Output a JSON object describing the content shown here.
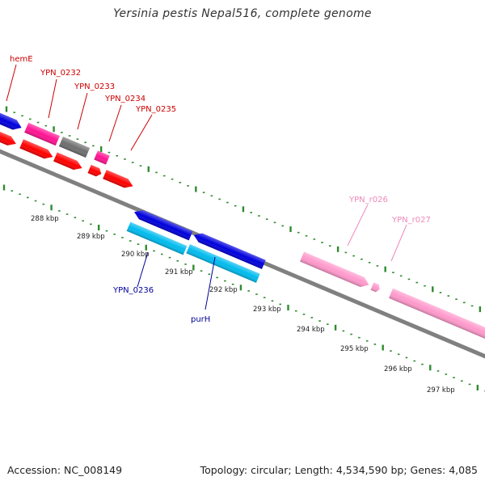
{
  "title": "Yersinia pestis Nepal516, complete genome",
  "footer": {
    "accession": "Accession: NC_008149",
    "summary": "Topology: circular; Length: 4,534,590 bp; Genes: 4,085"
  },
  "colors": {
    "backbone": "#808080",
    "ticks": "#2e8b2e",
    "label_red": "#cc0000",
    "label_blue": "#000099",
    "label_pink": "#ee88bb",
    "cds_red": "#ff0000",
    "cds_blue": "#0000dd",
    "cds_cyan": "#00bbee",
    "cds_magenta": "#ff1493",
    "cds_gray": "#6f6f6f",
    "rna_pink": "#ff99cc"
  },
  "scale_labels": [
    "288 kbp",
    "289 kbp",
    "290 kbp",
    "291 kbp",
    "292 kbp",
    "293 kbp",
    "294 kbp",
    "295 kbp",
    "296 kbp",
    "297 kbp"
  ],
  "features": [
    {
      "name": "hemE",
      "color": "#cc0000"
    },
    {
      "name": "YPN_0232",
      "color": "#cc0000"
    },
    {
      "name": "YPN_0233",
      "color": "#cc0000"
    },
    {
      "name": "YPN_0234",
      "color": "#cc0000"
    },
    {
      "name": "YPN_0235",
      "color": "#cc0000"
    },
    {
      "name": "YPN_0236",
      "color": "#000099"
    },
    {
      "name": "purH",
      "color": "#000099"
    },
    {
      "name": "YPN_r026",
      "color": "#ee88bb"
    },
    {
      "name": "YPN_r027",
      "color": "#ee88bb"
    }
  ]
}
